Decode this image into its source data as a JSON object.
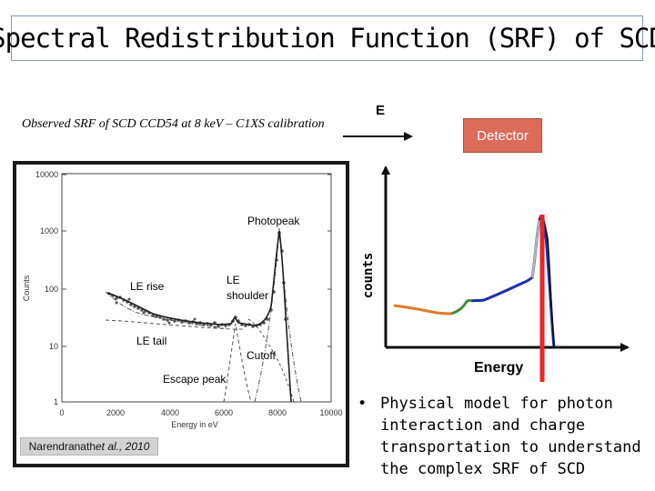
{
  "slide": {
    "title": "Spectral Redistribution Function (SRF) of SCD",
    "caption": "Observed SRF of  SCD CCD54 at  8 keV – C1XS calibration",
    "credit": {
      "author": "Narendranath",
      "suffix": " et al., 2010"
    },
    "bullet_glyph": "•",
    "bullet": "Physical model for photon interaction and charge transportation to understand the complex SRF of SCD"
  },
  "plot": {
    "y_ticks": [
      "10000",
      "1000",
      "100",
      "10",
      "1"
    ],
    "x_ticks": [
      "0",
      "2000",
      "4000",
      "6000",
      "8000",
      "10000"
    ],
    "y_label": "Counts",
    "x_label": "Energy in eV",
    "annotations": {
      "photopeak": "Photopeak",
      "le_rise": "LE rise",
      "le_shoulder_1": "LE",
      "le_shoulder_2": "shoulder",
      "le_tail": "LE tail",
      "cutoff": "Cutoff",
      "escape_peak": "Escape peak"
    }
  },
  "schematic": {
    "e_label": "E",
    "detector": "Detector",
    "y_axis_label": "counts",
    "x_axis_label": "Energy",
    "colors": {
      "marker_line": "#e8262a",
      "detector_fill": "#dd6b5a",
      "curve_left": "#e07a2a",
      "curve_mid": "#4a8a3a",
      "curve_right": "#1c2fa8"
    }
  }
}
